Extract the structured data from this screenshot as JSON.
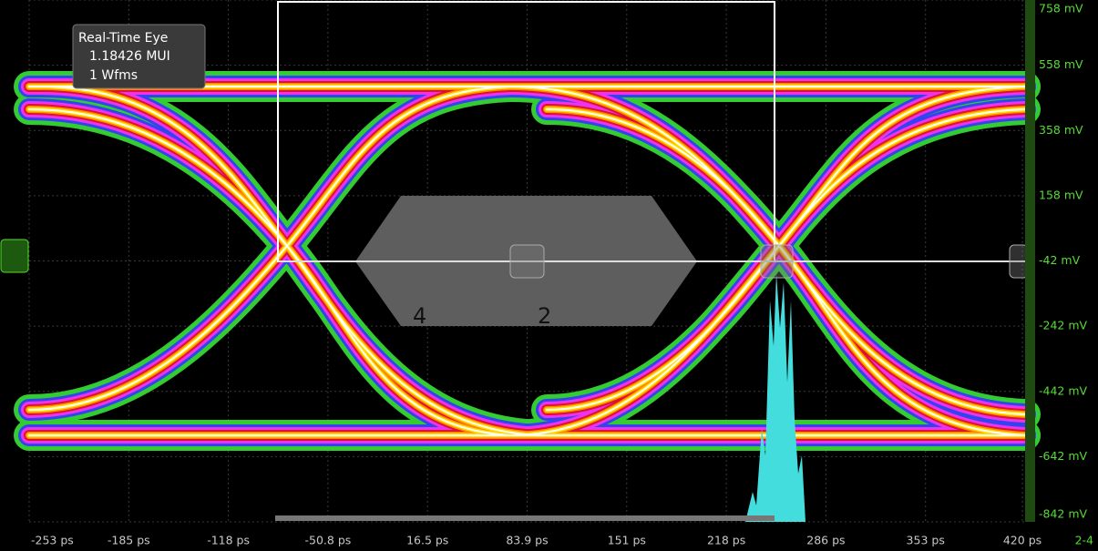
{
  "info_box": {
    "title": "Real-Time Eye",
    "mui": "1.18426 MUI",
    "wfms": "1 Wfms"
  },
  "x_axis_labels": [
    "-253 ps",
    "-185 ps",
    "-118 ps",
    "-50.8 ps",
    "16.5 ps",
    "83.9 ps",
    "151 ps",
    "218 ps",
    "286 ps",
    "353 ps",
    "420 ps"
  ],
  "y_axis_labels": [
    "758 mV",
    "558 mV",
    "358 mV",
    "158 mV",
    "-42 mV",
    "-242 mV",
    "-442 mV",
    "-642 mV",
    "-842 mV"
  ],
  "mask_labels": [
    "4",
    "2"
  ],
  "channel_label": "2-4"
}
